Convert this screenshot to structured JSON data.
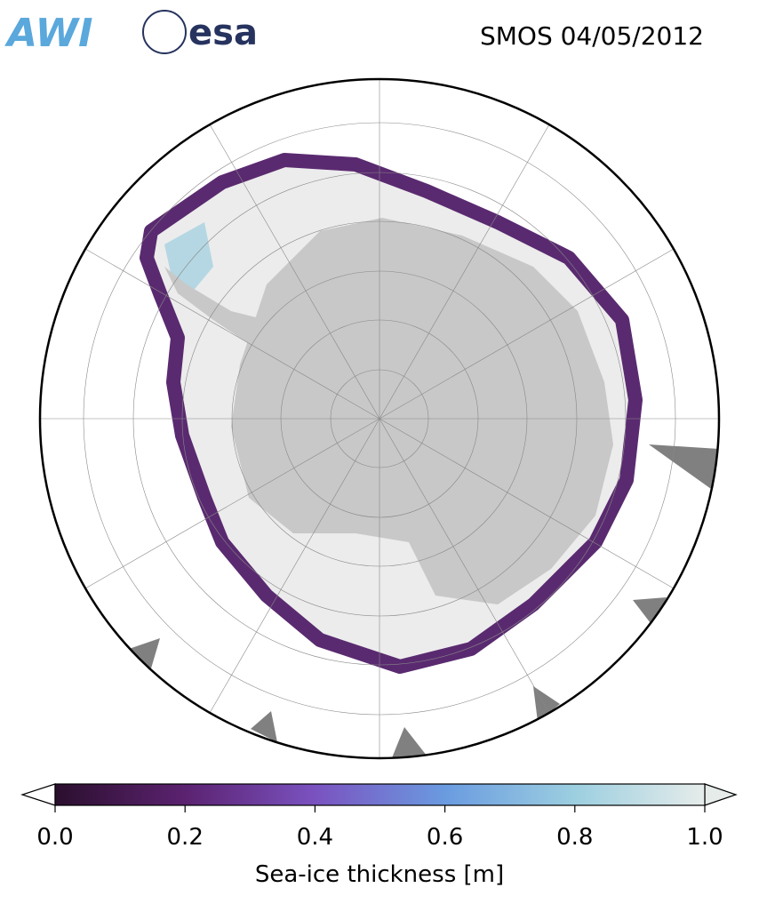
{
  "header": {
    "logos": [
      "AWI",
      "esa"
    ],
    "title": "SMOS 04/05/2012"
  },
  "colorbar": {
    "label": "Sea-ice thickness [m]",
    "range": [
      0,
      1
    ],
    "ticks": [
      {
        "value": 0,
        "label": "0.0"
      },
      0.2,
      0.4,
      0.6,
      0.8,
      {
        "value": 1,
        "label": "1.0"
      }
    ],
    "colors": [
      "#2b0f2e",
      "#5b2270",
      "#7a52c0",
      "#6a9be0",
      "#9ccfe0",
      "#e6ecea"
    ]
  }
}
